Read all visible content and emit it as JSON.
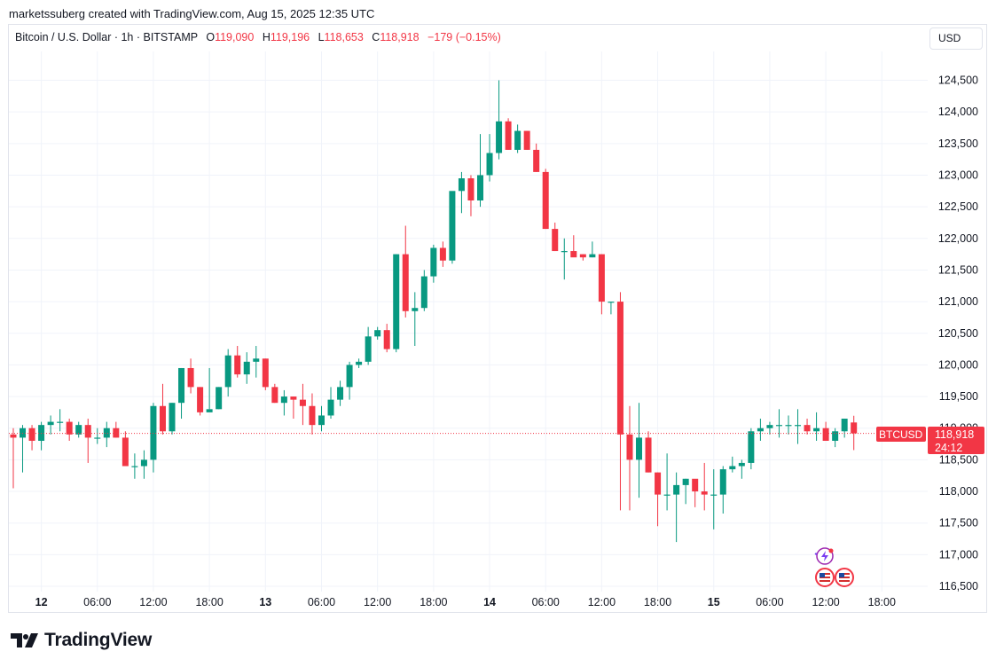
{
  "header": {
    "text": "marketssuberg created with TradingView.com, Aug 15, 2025 12:35 UTC"
  },
  "legend": {
    "symbol": "Bitcoin / U.S. Dollar · 1h · BITSTAMP",
    "o_label": "O",
    "o_value": "119,090",
    "h_label": "H",
    "h_value": "119,196",
    "l_label": "L",
    "l_value": "118,653",
    "c_label": "C",
    "c_value": "118,918",
    "change": "−179 (−0.15%)"
  },
  "currency_button": {
    "label": "USD"
  },
  "price_tag": {
    "ticker": "BTCUSD",
    "price": "118,918",
    "countdown": "24:12"
  },
  "footer": {
    "brand": "TradingView"
  },
  "colors": {
    "up": "#089981",
    "down": "#f23645",
    "grid": "#f0f3fa",
    "text": "#131722"
  },
  "icons": [
    "lightning-event-icon",
    "us-flag-icon",
    "us-flag-icon",
    "tradingview-logo-icon"
  ],
  "chart_data": {
    "type": "candlestick",
    "interval": "1h",
    "y_axis": {
      "min": 116500,
      "max": 124500,
      "step": 500,
      "side": "right",
      "tick_labels": [
        "116,500",
        "117,000",
        "117,500",
        "118,000",
        "118,500",
        "119,000",
        "119,500",
        "120,000",
        "120,500",
        "121,000",
        "121,500",
        "122,000",
        "122,500",
        "123,000",
        "123,500",
        "124,000",
        "124,500"
      ]
    },
    "x_axis": {
      "tick_labels": [
        {
          "label": "12",
          "bold": true
        },
        {
          "label": "06:00",
          "bold": false
        },
        {
          "label": "12:00",
          "bold": false
        },
        {
          "label": "18:00",
          "bold": false
        },
        {
          "label": "13",
          "bold": true
        },
        {
          "label": "06:00",
          "bold": false
        },
        {
          "label": "12:00",
          "bold": false
        },
        {
          "label": "18:00",
          "bold": false
        },
        {
          "label": "14",
          "bold": true
        },
        {
          "label": "06:00",
          "bold": false
        },
        {
          "label": "12:00",
          "bold": false
        },
        {
          "label": "18:00",
          "bold": false
        },
        {
          "label": "15",
          "bold": true
        },
        {
          "label": "06:00",
          "bold": false
        },
        {
          "label": "12:00",
          "bold": false
        },
        {
          "label": "18:00",
          "bold": false
        }
      ]
    },
    "grid": true,
    "last_price": 118918,
    "candles": [
      [
        118900,
        119000,
        118050,
        118850
      ],
      [
        118850,
        119050,
        118300,
        119000
      ],
      [
        119000,
        119050,
        118650,
        118800
      ],
      [
        118800,
        119100,
        118650,
        119050
      ],
      [
        119050,
        119200,
        118900,
        119100
      ],
      [
        119100,
        119300,
        118950,
        119100
      ],
      [
        119100,
        119150,
        118800,
        118900
      ],
      [
        118900,
        119100,
        118850,
        119050
      ],
      [
        119050,
        119150,
        118450,
        118850
      ],
      [
        118850,
        119000,
        118750,
        118850
      ],
      [
        118850,
        119100,
        118700,
        119000
      ],
      [
        119000,
        119100,
        118850,
        118850
      ],
      [
        118850,
        118950,
        118400,
        118400
      ],
      [
        118400,
        118600,
        118200,
        118400
      ],
      [
        118400,
        118650,
        118200,
        118500
      ],
      [
        118500,
        119400,
        118300,
        119350
      ],
      [
        119350,
        119700,
        118900,
        118950
      ],
      [
        118950,
        119400,
        118900,
        119400
      ],
      [
        119400,
        119950,
        119150,
        119950
      ],
      [
        119950,
        120100,
        119550,
        119650
      ],
      [
        119650,
        119650,
        119200,
        119250
      ],
      [
        119250,
        119950,
        119300,
        119300
      ],
      [
        119300,
        119650,
        119300,
        119650
      ],
      [
        119650,
        120250,
        119500,
        120150
      ],
      [
        120150,
        120300,
        119800,
        119850
      ],
      [
        119850,
        120200,
        119700,
        120050
      ],
      [
        120050,
        120300,
        119800,
        120100
      ],
      [
        120100,
        120100,
        119600,
        119650
      ],
      [
        119650,
        119700,
        119400,
        119400
      ],
      [
        119400,
        119600,
        119200,
        119500
      ],
      [
        119500,
        119500,
        119150,
        119450
      ],
      [
        119450,
        119700,
        119050,
        119350
      ],
      [
        119350,
        119550,
        118900,
        119050
      ],
      [
        119050,
        119350,
        118950,
        119200
      ],
      [
        119200,
        119650,
        119150,
        119450
      ],
      [
        119450,
        119750,
        119350,
        119650
      ],
      [
        119650,
        120050,
        119450,
        120000
      ],
      [
        120000,
        120100,
        119950,
        120050
      ],
      [
        120050,
        120600,
        120000,
        120450
      ],
      [
        120450,
        120600,
        120400,
        120550
      ],
      [
        120550,
        120650,
        120200,
        120250
      ],
      [
        120250,
        121750,
        120200,
        121750
      ],
      [
        121750,
        122200,
        120750,
        120850
      ],
      [
        120850,
        121150,
        120300,
        120900
      ],
      [
        120900,
        121500,
        120850,
        121400
      ],
      [
        121400,
        121900,
        121300,
        121850
      ],
      [
        121850,
        121950,
        121550,
        121650
      ],
      [
        121650,
        122700,
        121600,
        122750
      ],
      [
        122750,
        123050,
        122400,
        122950
      ],
      [
        122950,
        123000,
        122350,
        122600
      ],
      [
        122600,
        123650,
        122500,
        123000
      ],
      [
        123000,
        123650,
        122900,
        123350
      ],
      [
        123350,
        124500,
        123250,
        123850
      ],
      [
        123850,
        123900,
        123400,
        123400
      ],
      [
        123400,
        123800,
        123350,
        123700
      ],
      [
        123700,
        123700,
        123400,
        123400
      ],
      [
        123400,
        123500,
        123050,
        123050
      ],
      [
        123050,
        123100,
        122150,
        122150
      ],
      [
        122150,
        122250,
        121800,
        121800
      ],
      [
        121800,
        122000,
        121350,
        121800
      ],
      [
        121800,
        122050,
        121750,
        121700
      ],
      [
        121750,
        121750,
        121650,
        121700
      ],
      [
        121700,
        121950,
        121700,
        121750
      ],
      [
        121750,
        121750,
        120800,
        121000
      ],
      [
        121000,
        121000,
        120800,
        121000
      ],
      [
        121000,
        121150,
        117700,
        118900
      ],
      [
        118900,
        119350,
        117700,
        118500
      ],
      [
        118500,
        119400,
        117900,
        118850
      ],
      [
        118850,
        118950,
        118300,
        118300
      ],
      [
        118300,
        118300,
        117450,
        117950
      ],
      [
        117950,
        118600,
        117700,
        117950
      ],
      [
        117950,
        118300,
        117200,
        118100
      ],
      [
        118100,
        118200,
        117800,
        118200
      ],
      [
        118200,
        118150,
        117750,
        118000
      ],
      [
        118000,
        118450,
        117700,
        117950
      ],
      [
        117950,
        118350,
        117400,
        117950
      ],
      [
        117950,
        118400,
        117650,
        118350
      ],
      [
        118350,
        118550,
        118300,
        118400
      ],
      [
        118400,
        118500,
        118200,
        118450
      ],
      [
        118450,
        119000,
        118350,
        118950
      ],
      [
        118950,
        119150,
        118800,
        119000
      ],
      [
        119000,
        119100,
        118900,
        119050
      ],
      [
        119050,
        119300,
        118850,
        119050
      ],
      [
        119050,
        119200,
        118900,
        119050
      ],
      [
        119050,
        119300,
        118750,
        119050
      ],
      [
        119050,
        119150,
        118900,
        118950
      ],
      [
        118950,
        119250,
        118800,
        119000
      ],
      [
        119000,
        119100,
        118800,
        118800
      ],
      [
        118800,
        119000,
        118700,
        118950
      ],
      [
        118950,
        119150,
        118850,
        119150
      ],
      [
        119090,
        119196,
        118653,
        118918
      ]
    ]
  }
}
